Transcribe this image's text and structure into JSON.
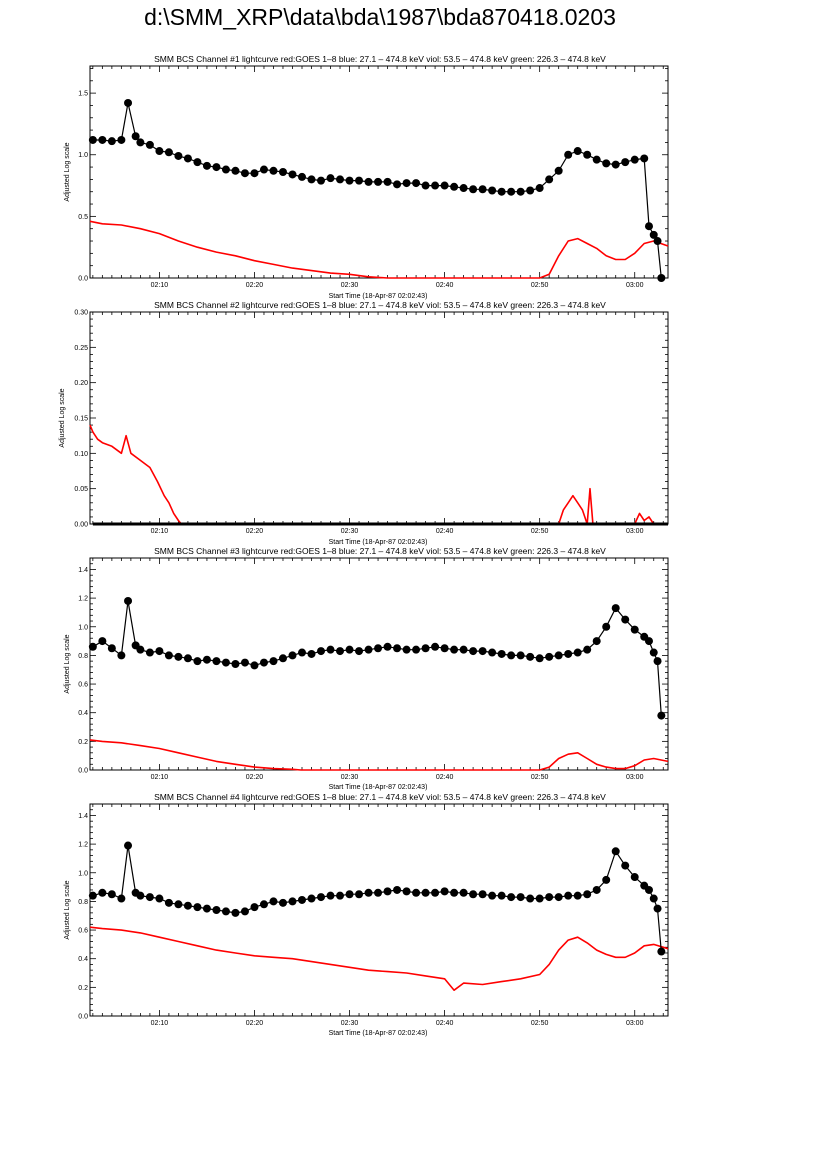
{
  "page_title": "d:\\SMM_XRP\\data\\bda\\1987\\bda870418.0203",
  "colors": {
    "goes": "#ff0000",
    "bcs": "#000000"
  },
  "chart_data": [
    {
      "type": "line",
      "title": "SMM BCS Channel #1 lightcurve  red:GOES 1–8  blue: 27.1 – 474.8 keV  viol: 53.5 – 474.8 keV  green: 226.3 – 474.8 keV",
      "xlabel": "Start Time (18-Apr-87 02:02:43)",
      "ylabel": "Adjusted Log scale",
      "xlim": [
        2.7,
        63.5
      ],
      "ylim": [
        0,
        1.72
      ],
      "yticks": [
        0.0,
        0.5,
        1.0,
        1.5
      ],
      "ytick_labels": [
        "0.0",
        "0.5",
        "1.0",
        "1.5"
      ],
      "xticks": [
        10,
        20,
        30,
        40,
        50,
        60
      ],
      "xtick_labels": [
        "02:10",
        "02:20",
        "02:30",
        "02:40",
        "02:50",
        "03:00"
      ],
      "series": [
        {
          "color": "#ff0000",
          "style": "line",
          "x": [
            2.7,
            4,
            6,
            8,
            10,
            12,
            14,
            16,
            18,
            20,
            22,
            24,
            26,
            28,
            30,
            32,
            34,
            36,
            38,
            40,
            42,
            44,
            46,
            48,
            50,
            51,
            52,
            53,
            54,
            55,
            56,
            57,
            58,
            59,
            60,
            61,
            62,
            63.5
          ],
          "y": [
            0.46,
            0.44,
            0.43,
            0.4,
            0.36,
            0.3,
            0.25,
            0.21,
            0.18,
            0.14,
            0.11,
            0.08,
            0.06,
            0.04,
            0.03,
            0.01,
            0.0,
            0.0,
            0.0,
            0.0,
            0.0,
            0.0,
            0.0,
            0.0,
            0.0,
            0.03,
            0.18,
            0.3,
            0.32,
            0.28,
            0.24,
            0.18,
            0.15,
            0.15,
            0.2,
            0.28,
            0.3,
            0.26
          ]
        },
        {
          "color": "#000000",
          "style": "points",
          "x": [
            3,
            4,
            5,
            6,
            6.7,
            7.5,
            8,
            9,
            10,
            11,
            12,
            13,
            14,
            15,
            16,
            17,
            18,
            19,
            20,
            21,
            22,
            23,
            24,
            25,
            26,
            27,
            28,
            29,
            30,
            31,
            32,
            33,
            34,
            35,
            36,
            37,
            38,
            39,
            40,
            41,
            42,
            43,
            44,
            45,
            46,
            47,
            48,
            49,
            50,
            51,
            52,
            53,
            54,
            55,
            56,
            57,
            58,
            59,
            60,
            61,
            61.5,
            62,
            62.4,
            62.8
          ],
          "y": [
            1.12,
            1.12,
            1.11,
            1.12,
            1.42,
            1.15,
            1.1,
            1.08,
            1.03,
            1.02,
            0.99,
            0.97,
            0.94,
            0.91,
            0.9,
            0.88,
            0.87,
            0.85,
            0.85,
            0.88,
            0.87,
            0.86,
            0.84,
            0.82,
            0.8,
            0.79,
            0.81,
            0.8,
            0.79,
            0.79,
            0.78,
            0.78,
            0.78,
            0.76,
            0.77,
            0.77,
            0.75,
            0.75,
            0.75,
            0.74,
            0.73,
            0.72,
            0.72,
            0.71,
            0.7,
            0.7,
            0.7,
            0.71,
            0.73,
            0.8,
            0.87,
            1.0,
            1.03,
            1.0,
            0.96,
            0.93,
            0.92,
            0.94,
            0.96,
            0.97,
            0.42,
            0.35,
            0.3,
            0.0
          ]
        }
      ]
    },
    {
      "type": "line",
      "title": "SMM BCS Channel #2 lightcurve  red:GOES 1–8  blue: 27.1 – 474.8 keV  viol: 53.5 – 474.8 keV  green: 226.3 – 474.8 keV",
      "xlabel": "Start Time (18-Apr-87 02:02:43)",
      "ylabel": "Adjusted Log scale",
      "xlim": [
        2.7,
        63.5
      ],
      "ylim": [
        0,
        0.3
      ],
      "yticks": [
        0.0,
        0.05,
        0.1,
        0.15,
        0.2,
        0.25,
        0.3
      ],
      "ytick_labels": [
        "0.00",
        "0.05",
        "0.10",
        "0.15",
        "0.20",
        "0.25",
        "0.30"
      ],
      "xticks": [
        10,
        20,
        30,
        40,
        50,
        60
      ],
      "xtick_labels": [
        "02:10",
        "02:20",
        "02:30",
        "02:40",
        "02:50",
        "03:00"
      ],
      "series": [
        {
          "color": "#ff0000",
          "style": "line",
          "x": [
            2.7,
            3.0,
            3.5,
            4,
            5,
            6,
            6.5,
            7,
            8,
            9,
            9.8,
            10.5,
            11,
            11.5,
            12,
            12.3,
            50,
            52,
            52.5,
            53,
            53.5,
            54,
            54.5,
            55,
            55.3,
            55.6,
            56,
            60,
            60.5,
            61,
            61.5,
            62,
            63.5
          ],
          "y": [
            0.14,
            0.13,
            0.12,
            0.115,
            0.11,
            0.1,
            0.125,
            0.1,
            0.09,
            0.08,
            0.06,
            0.04,
            0.03,
            0.015,
            0.005,
            0.0,
            0.0,
            0.0,
            0.02,
            0.03,
            0.04,
            0.03,
            0.02,
            0.0,
            0.05,
            0.0,
            0.0,
            0.0,
            0.015,
            0.005,
            0.01,
            0.0,
            0.0
          ]
        },
        {
          "color": "#000000",
          "style": "line",
          "x": [
            3,
            63.5
          ],
          "y": [
            0.0,
            0.0
          ]
        }
      ]
    },
    {
      "type": "line",
      "title": "SMM BCS Channel #3 lightcurve  red:GOES 1–8  blue: 27.1 – 474.8 keV  viol: 53.5 – 474.8 keV  green: 226.3 – 474.8 keV",
      "xlabel": "Start Time (18-Apr-87 02:02:43)",
      "ylabel": "Adjusted Log scale",
      "xlim": [
        2.7,
        63.5
      ],
      "ylim": [
        0,
        1.48
      ],
      "yticks": [
        0.0,
        0.2,
        0.4,
        0.6,
        0.8,
        1.0,
        1.2,
        1.4
      ],
      "ytick_labels": [
        "0.0",
        "0.2",
        "0.4",
        "0.6",
        "0.8",
        "1.0",
        "1.2",
        "1.4"
      ],
      "xticks": [
        10,
        20,
        30,
        40,
        50,
        60
      ],
      "xtick_labels": [
        "02:10",
        "02:20",
        "02:30",
        "02:40",
        "02:50",
        "03:00"
      ],
      "series": [
        {
          "color": "#ff0000",
          "style": "line",
          "x": [
            2.7,
            4,
            6,
            8,
            10,
            12,
            14,
            16,
            18,
            20,
            22,
            24,
            24.9,
            50,
            51,
            52,
            53,
            54,
            55,
            56,
            57,
            58,
            59,
            60,
            61,
            62,
            63.5
          ],
          "y": [
            0.21,
            0.2,
            0.19,
            0.17,
            0.15,
            0.12,
            0.09,
            0.06,
            0.04,
            0.02,
            0.01,
            0.005,
            0.0,
            0.0,
            0.02,
            0.08,
            0.11,
            0.12,
            0.08,
            0.04,
            0.02,
            0.01,
            0.01,
            0.03,
            0.07,
            0.08,
            0.06
          ]
        },
        {
          "color": "#000000",
          "style": "points",
          "x": [
            3,
            4,
            5,
            6,
            6.7,
            7.5,
            8,
            9,
            10,
            11,
            12,
            13,
            14,
            15,
            16,
            17,
            18,
            19,
            20,
            21,
            22,
            23,
            24,
            25,
            26,
            27,
            28,
            29,
            30,
            31,
            32,
            33,
            34,
            35,
            36,
            37,
            38,
            39,
            40,
            41,
            42,
            43,
            44,
            45,
            46,
            47,
            48,
            49,
            50,
            51,
            52,
            53,
            54,
            55,
            56,
            57,
            58,
            59,
            60,
            61,
            61.5,
            62,
            62.4,
            62.8
          ],
          "y": [
            0.86,
            0.9,
            0.85,
            0.8,
            1.18,
            0.87,
            0.84,
            0.82,
            0.83,
            0.8,
            0.79,
            0.78,
            0.76,
            0.77,
            0.76,
            0.75,
            0.74,
            0.75,
            0.73,
            0.75,
            0.76,
            0.78,
            0.8,
            0.82,
            0.81,
            0.83,
            0.84,
            0.83,
            0.84,
            0.83,
            0.84,
            0.85,
            0.86,
            0.85,
            0.84,
            0.84,
            0.85,
            0.86,
            0.85,
            0.84,
            0.84,
            0.83,
            0.83,
            0.82,
            0.81,
            0.8,
            0.8,
            0.79,
            0.78,
            0.79,
            0.8,
            0.81,
            0.82,
            0.84,
            0.9,
            1.0,
            1.13,
            1.05,
            0.98,
            0.93,
            0.9,
            0.82,
            0.76,
            0.38
          ]
        }
      ]
    },
    {
      "type": "line",
      "title": "SMM BCS Channel #4 lightcurve  red:GOES 1–8  blue: 27.1 – 474.8 keV  viol: 53.5 – 474.8 keV  green: 226.3 – 474.8 keV",
      "xlabel": "Start Time (18-Apr-87 02:02:43)",
      "ylabel": "Adjusted Log scale",
      "xlim": [
        2.7,
        63.5
      ],
      "ylim": [
        0,
        1.48
      ],
      "yticks": [
        0.0,
        0.2,
        0.4,
        0.6,
        0.8,
        1.0,
        1.2,
        1.4
      ],
      "ytick_labels": [
        "0.0",
        "0.2",
        "0.4",
        "0.6",
        "0.8",
        "1.0",
        "1.2",
        "1.4"
      ],
      "xticks": [
        10,
        20,
        30,
        40,
        50,
        60
      ],
      "xtick_labels": [
        "02:10",
        "02:20",
        "02:30",
        "02:40",
        "02:50",
        "03:00"
      ],
      "series": [
        {
          "color": "#ff0000",
          "style": "line",
          "x": [
            2.7,
            4,
            6,
            8,
            10,
            12,
            14,
            16,
            18,
            20,
            22,
            24,
            26,
            28,
            30,
            32,
            34,
            36,
            38,
            40,
            41,
            42,
            44,
            46,
            48,
            50,
            51,
            52,
            53,
            54,
            55,
            56,
            57,
            58,
            59,
            60,
            61,
            62,
            63.5
          ],
          "y": [
            0.62,
            0.61,
            0.6,
            0.58,
            0.55,
            0.52,
            0.49,
            0.46,
            0.44,
            0.42,
            0.41,
            0.4,
            0.38,
            0.36,
            0.34,
            0.32,
            0.31,
            0.3,
            0.28,
            0.26,
            0.18,
            0.23,
            0.22,
            0.24,
            0.26,
            0.29,
            0.36,
            0.46,
            0.53,
            0.55,
            0.51,
            0.46,
            0.43,
            0.41,
            0.41,
            0.44,
            0.49,
            0.5,
            0.47
          ]
        },
        {
          "color": "#000000",
          "style": "points",
          "x": [
            3,
            4,
            5,
            6,
            6.7,
            7.5,
            8,
            9,
            10,
            11,
            12,
            13,
            14,
            15,
            16,
            17,
            18,
            19,
            20,
            21,
            22,
            23,
            24,
            25,
            26,
            27,
            28,
            29,
            30,
            31,
            32,
            33,
            34,
            35,
            36,
            37,
            38,
            39,
            40,
            41,
            42,
            43,
            44,
            45,
            46,
            47,
            48,
            49,
            50,
            51,
            52,
            53,
            54,
            55,
            56,
            57,
            58,
            59,
            60,
            61,
            61.5,
            62,
            62.4,
            62.8
          ],
          "y": [
            0.84,
            0.86,
            0.85,
            0.82,
            1.19,
            0.86,
            0.84,
            0.83,
            0.82,
            0.79,
            0.78,
            0.77,
            0.76,
            0.75,
            0.74,
            0.73,
            0.72,
            0.73,
            0.76,
            0.78,
            0.8,
            0.79,
            0.8,
            0.81,
            0.82,
            0.83,
            0.84,
            0.84,
            0.85,
            0.85,
            0.86,
            0.86,
            0.87,
            0.88,
            0.87,
            0.86,
            0.86,
            0.86,
            0.87,
            0.86,
            0.86,
            0.85,
            0.85,
            0.84,
            0.84,
            0.83,
            0.83,
            0.82,
            0.82,
            0.83,
            0.83,
            0.84,
            0.84,
            0.85,
            0.88,
            0.95,
            1.15,
            1.05,
            0.97,
            0.91,
            0.88,
            0.82,
            0.75,
            0.45
          ]
        }
      ]
    }
  ]
}
